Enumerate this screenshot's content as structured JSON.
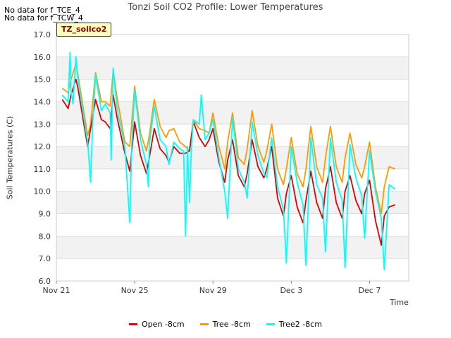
{
  "notes": [
    "No data for f_TCE_4",
    "No data for f_TCW_4"
  ],
  "tag": "TZ_soilco2",
  "chart_data": {
    "type": "line",
    "title": "Tonzi Soil CO2 Profile: Lower Temperatures",
    "xlabel": "Time",
    "ylabel": "Soil Temperatures (C)",
    "ylim": [
      6.0,
      17.0
    ],
    "xlim": [
      0,
      18
    ],
    "yticks": [
      6.0,
      7.0,
      8.0,
      9.0,
      10.0,
      11.0,
      12.0,
      13.0,
      14.0,
      15.0,
      16.0,
      17.0
    ],
    "xticks": [
      {
        "x": 0,
        "label": "Nov 21"
      },
      {
        "x": 4,
        "label": "Nov 25"
      },
      {
        "x": 8,
        "label": "Nov 29"
      },
      {
        "x": 12,
        "label": "Dec 3"
      },
      {
        "x": 16,
        "label": "Dec 7"
      }
    ],
    "grid": true,
    "legend_position": "bottom",
    "series": [
      {
        "name": "Open -8cm",
        "color": "#dd0000",
        "x": [
          0.3,
          0.6,
          0.75,
          1.0,
          1.1,
          1.6,
          1.75,
          2.0,
          2.3,
          2.5,
          2.75,
          2.9,
          3.1,
          3.5,
          3.75,
          4.0,
          4.3,
          4.6,
          4.75,
          5.0,
          5.3,
          5.6,
          5.75,
          6.0,
          6.3,
          6.6,
          6.8,
          7.0,
          7.3,
          7.6,
          7.8,
          8.0,
          8.3,
          8.6,
          8.75,
          9.0,
          9.3,
          9.6,
          9.75,
          10.0,
          10.3,
          10.6,
          10.75,
          11.0,
          11.3,
          11.6,
          11.75,
          12.0,
          12.3,
          12.6,
          12.75,
          13.0,
          13.3,
          13.6,
          13.75,
          14.0,
          14.3,
          14.6,
          14.75,
          15.0,
          15.3,
          15.6,
          15.75,
          16.0,
          16.3,
          16.6,
          16.75,
          17.0,
          17.3
        ],
        "y": [
          14.1,
          13.7,
          14.3,
          15.0,
          14.6,
          12.0,
          12.8,
          14.1,
          13.2,
          13.1,
          12.8,
          14.3,
          13.3,
          11.7,
          10.9,
          13.1,
          11.6,
          10.8,
          11.5,
          12.8,
          11.9,
          11.6,
          11.3,
          12.0,
          11.7,
          11.7,
          11.8,
          13.1,
          12.4,
          12.0,
          12.3,
          12.8,
          11.3,
          10.4,
          11.4,
          12.3,
          10.7,
          10.2,
          10.8,
          12.3,
          11.1,
          10.6,
          11.0,
          12.0,
          9.7,
          8.9,
          9.9,
          10.7,
          9.3,
          8.6,
          9.6,
          10.9,
          9.5,
          8.8,
          10.1,
          11.1,
          9.5,
          8.8,
          10.0,
          10.7,
          9.6,
          9.0,
          9.9,
          10.5,
          8.7,
          7.6,
          8.9,
          9.3,
          9.4
        ]
      },
      {
        "name": "Tree -8cm",
        "color": "#ff9900",
        "x": [
          0.3,
          0.6,
          0.75,
          1.0,
          1.1,
          1.6,
          1.75,
          2.0,
          2.3,
          2.5,
          2.75,
          2.9,
          3.1,
          3.5,
          3.75,
          4.0,
          4.3,
          4.6,
          4.75,
          5.0,
          5.3,
          5.6,
          5.75,
          6.0,
          6.3,
          6.6,
          6.8,
          7.0,
          7.3,
          7.6,
          7.8,
          8.0,
          8.3,
          8.6,
          8.75,
          9.0,
          9.3,
          9.6,
          9.75,
          10.0,
          10.3,
          10.6,
          10.75,
          11.0,
          11.3,
          11.6,
          11.75,
          12.0,
          12.3,
          12.6,
          12.75,
          13.0,
          13.3,
          13.6,
          13.75,
          14.0,
          14.3,
          14.6,
          14.75,
          15.0,
          15.3,
          15.6,
          15.75,
          16.0,
          16.3,
          16.6,
          16.75,
          17.0,
          17.3
        ],
        "y": [
          14.6,
          14.4,
          15.0,
          15.7,
          15.2,
          12.5,
          13.0,
          15.3,
          14.0,
          14.0,
          13.8,
          15.4,
          14.2,
          12.2,
          12.0,
          14.7,
          12.6,
          11.8,
          12.5,
          14.1,
          12.9,
          12.4,
          12.7,
          12.8,
          12.2,
          12.0,
          11.8,
          13.2,
          12.8,
          12.7,
          12.6,
          13.5,
          12.0,
          11.0,
          12.2,
          13.5,
          11.5,
          11.2,
          11.9,
          13.6,
          12.0,
          11.3,
          11.8,
          13.0,
          11.0,
          10.3,
          11.0,
          12.4,
          10.8,
          10.2,
          11.0,
          12.9,
          11.1,
          10.4,
          11.5,
          12.9,
          11.1,
          10.4,
          11.5,
          12.6,
          11.2,
          10.6,
          11.1,
          12.2,
          10.2,
          9.0,
          10.2,
          11.1,
          11.0
        ]
      },
      {
        "name": "Tree2 -8cm",
        "color": "#00ffff",
        "x": [
          0.3,
          0.6,
          0.7,
          0.75,
          0.85,
          1.0,
          1.1,
          1.6,
          1.75,
          1.85,
          2.0,
          2.3,
          2.5,
          2.75,
          2.8,
          2.9,
          3.1,
          3.5,
          3.75,
          3.85,
          4.0,
          4.3,
          4.6,
          4.7,
          4.75,
          5.0,
          5.3,
          5.6,
          5.75,
          6.0,
          6.3,
          6.5,
          6.6,
          6.7,
          6.8,
          6.9,
          7.0,
          7.3,
          7.4,
          7.6,
          7.8,
          8.0,
          8.3,
          8.6,
          8.75,
          9.0,
          9.3,
          9.6,
          9.75,
          10.0,
          10.3,
          10.6,
          10.75,
          11.0,
          11.3,
          11.6,
          11.75,
          12.0,
          12.3,
          12.6,
          12.75,
          13.0,
          13.3,
          13.6,
          13.75,
          14.0,
          14.3,
          14.6,
          14.75,
          15.0,
          15.3,
          15.6,
          15.75,
          16.0,
          16.3,
          16.6,
          16.75,
          17.0,
          17.3
        ],
        "y": [
          14.3,
          14.0,
          16.2,
          14.5,
          13.9,
          16.0,
          15.0,
          12.2,
          10.4,
          13.0,
          15.2,
          13.6,
          13.9,
          13.5,
          11.4,
          15.5,
          13.7,
          12.0,
          8.6,
          12.0,
          14.5,
          12.3,
          11.2,
          10.2,
          12.1,
          13.8,
          12.3,
          12.0,
          11.2,
          12.2,
          11.9,
          11.8,
          8.0,
          12.0,
          9.5,
          12.0,
          13.2,
          13.0,
          14.3,
          12.3,
          12.6,
          13.2,
          11.5,
          10.0,
          8.8,
          13.3,
          11.0,
          10.4,
          9.7,
          13.1,
          11.6,
          10.8,
          10.6,
          12.4,
          10.2,
          9.2,
          6.8,
          12.0,
          10.4,
          9.4,
          6.7,
          12.4,
          10.3,
          9.7,
          7.3,
          12.4,
          10.4,
          9.6,
          6.6,
          12.1,
          10.6,
          9.8,
          7.9,
          11.8,
          10.0,
          8.8,
          6.5,
          10.3,
          10.1
        ]
      }
    ]
  }
}
